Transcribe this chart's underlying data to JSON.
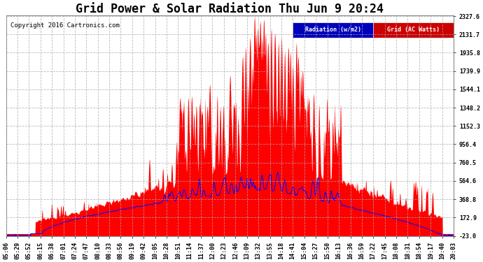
{
  "title": "Grid Power & Solar Radiation Thu Jun 9 20:24",
  "copyright": "Copyright 2016 Cartronics.com",
  "legend_radiation": "Radiation (w/m2)",
  "legend_grid": "Grid (AC Watts)",
  "legend_radiation_bg": "#0000bb",
  "legend_grid_bg": "#cc0000",
  "yticks": [
    2327.6,
    2131.7,
    1935.8,
    1739.9,
    1544.1,
    1348.2,
    1152.3,
    956.4,
    760.5,
    564.6,
    368.8,
    172.9,
    -23.0
  ],
  "ymin": -23.0,
  "ymax": 2327.6,
  "background_color": "#ffffff",
  "plot_bg": "#ffffff",
  "grid_color": "#aaaaaa",
  "radiation_color": "#ff0000",
  "grid_line_color": "#0000ff",
  "xtick_labels": [
    "05:06",
    "05:29",
    "05:52",
    "06:15",
    "06:38",
    "07:01",
    "07:24",
    "07:47",
    "08:10",
    "08:33",
    "08:56",
    "09:19",
    "09:42",
    "10:05",
    "10:28",
    "10:51",
    "11:14",
    "11:37",
    "12:00",
    "12:23",
    "12:46",
    "13:09",
    "13:32",
    "13:55",
    "14:18",
    "14:41",
    "15:04",
    "15:27",
    "15:50",
    "16:13",
    "16:36",
    "16:59",
    "17:22",
    "17:45",
    "18:08",
    "18:31",
    "18:54",
    "19:17",
    "19:40",
    "20:03"
  ],
  "figsize": [
    6.9,
    3.75
  ],
  "dpi": 100,
  "title_fontsize": 12,
  "tick_fontsize": 6,
  "copyright_fontsize": 6.5
}
